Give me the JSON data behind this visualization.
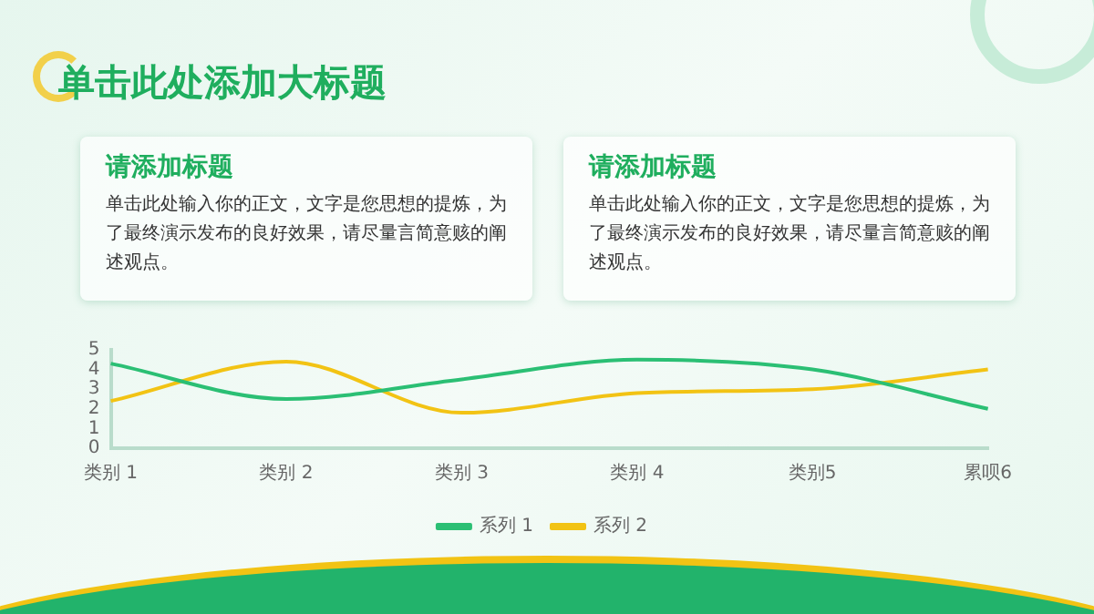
{
  "chart_data": {
    "type": "line",
    "title": "单击此处添加大标题",
    "annotations": [
      "请添加标题",
      "单击此处输入你的正文，文字是您思想的提炼，为了最终演示发布的良好效果，请尽量言简意赅的阐述观点。",
      "请添加标题",
      "单击此处输入你的正文，文字是您思想的提炼，为了最终演示发布的良好效果，请尽量言简意赅的阐述观点。"
    ],
    "categories": [
      "类别 1",
      "类别 2",
      "类别 3",
      "类别 4",
      "类别5",
      "累呗6"
    ],
    "series": [
      {
        "name": "系列 1",
        "color": "#2bbf74",
        "values": [
          4.3,
          2.5,
          3.5,
          4.5,
          4.0,
          2.0
        ]
      },
      {
        "name": "系列 2",
        "color": "#f2c314",
        "values": [
          2.4,
          4.4,
          1.8,
          2.8,
          3.0,
          4.0
        ]
      }
    ],
    "ylim": [
      0,
      5
    ],
    "yticks": [
      0,
      1,
      2,
      3,
      4,
      5
    ],
    "grid": false,
    "legend": "bottom",
    "marker": "none",
    "line_style": "solid"
  }
}
